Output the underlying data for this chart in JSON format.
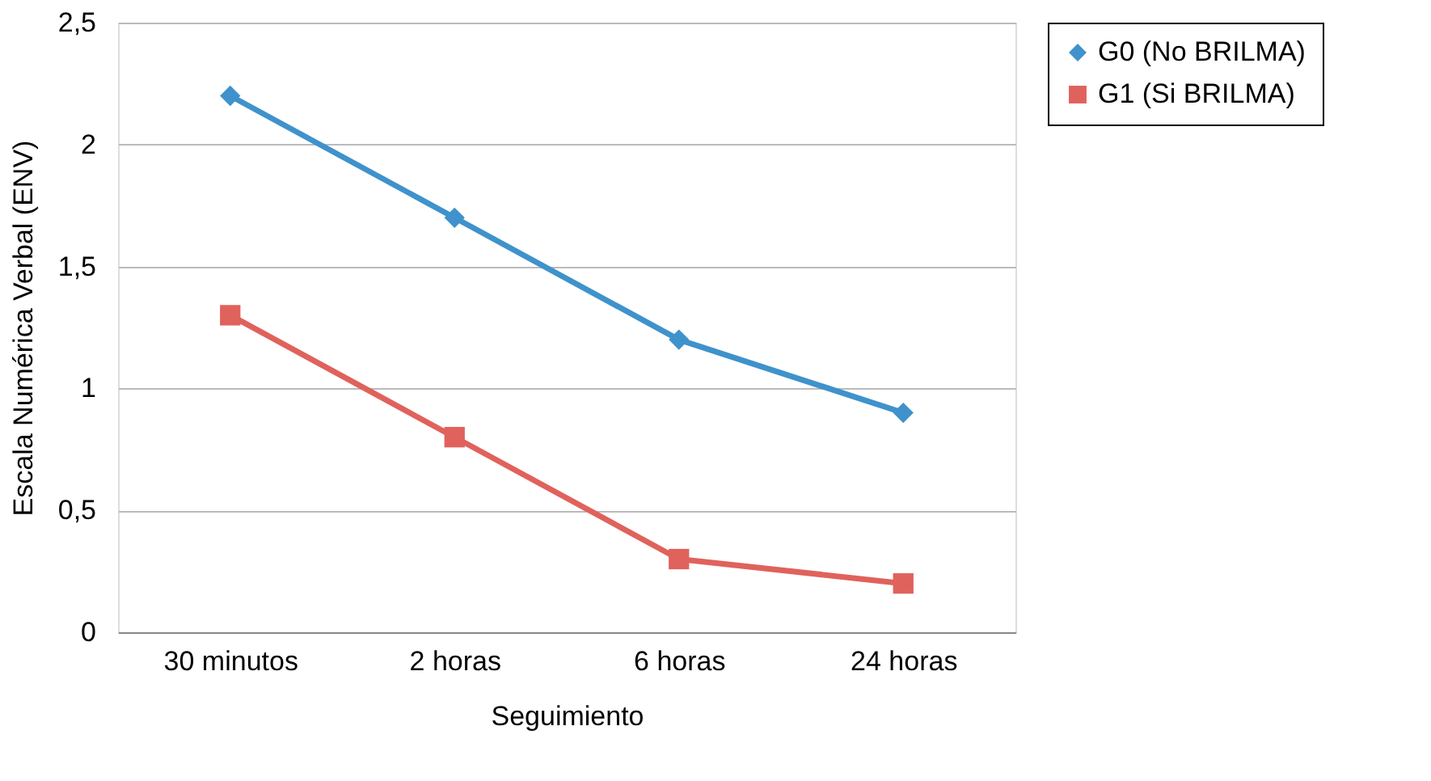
{
  "chart_data": {
    "type": "line",
    "xlabel": "Seguimiento",
    "ylabel": "Escala Numérica Verbal (ENV)",
    "categories": [
      "30 minutos",
      "2 horas",
      "6 horas",
      "24 horas"
    ],
    "series": [
      {
        "name": "G0 (No BRILMA)",
        "color": "#3f92cb",
        "marker": "diamond",
        "values": [
          2.2,
          1.7,
          1.2,
          0.9
        ]
      },
      {
        "name": "G1 (Si BRILMA)",
        "color": "#e0625c",
        "marker": "square",
        "values": [
          1.3,
          0.8,
          0.3,
          0.2
        ]
      }
    ],
    "ylim": [
      0,
      2.5
    ],
    "yticks": [
      0,
      {
        "value": 0.5,
        "label": "0,5"
      },
      1,
      {
        "value": 1.5,
        "label": "1,5"
      },
      2,
      {
        "value": 2.5,
        "label": "2,5"
      }
    ],
    "grid": "y",
    "legend": "top right",
    "line_style": "solid"
  }
}
